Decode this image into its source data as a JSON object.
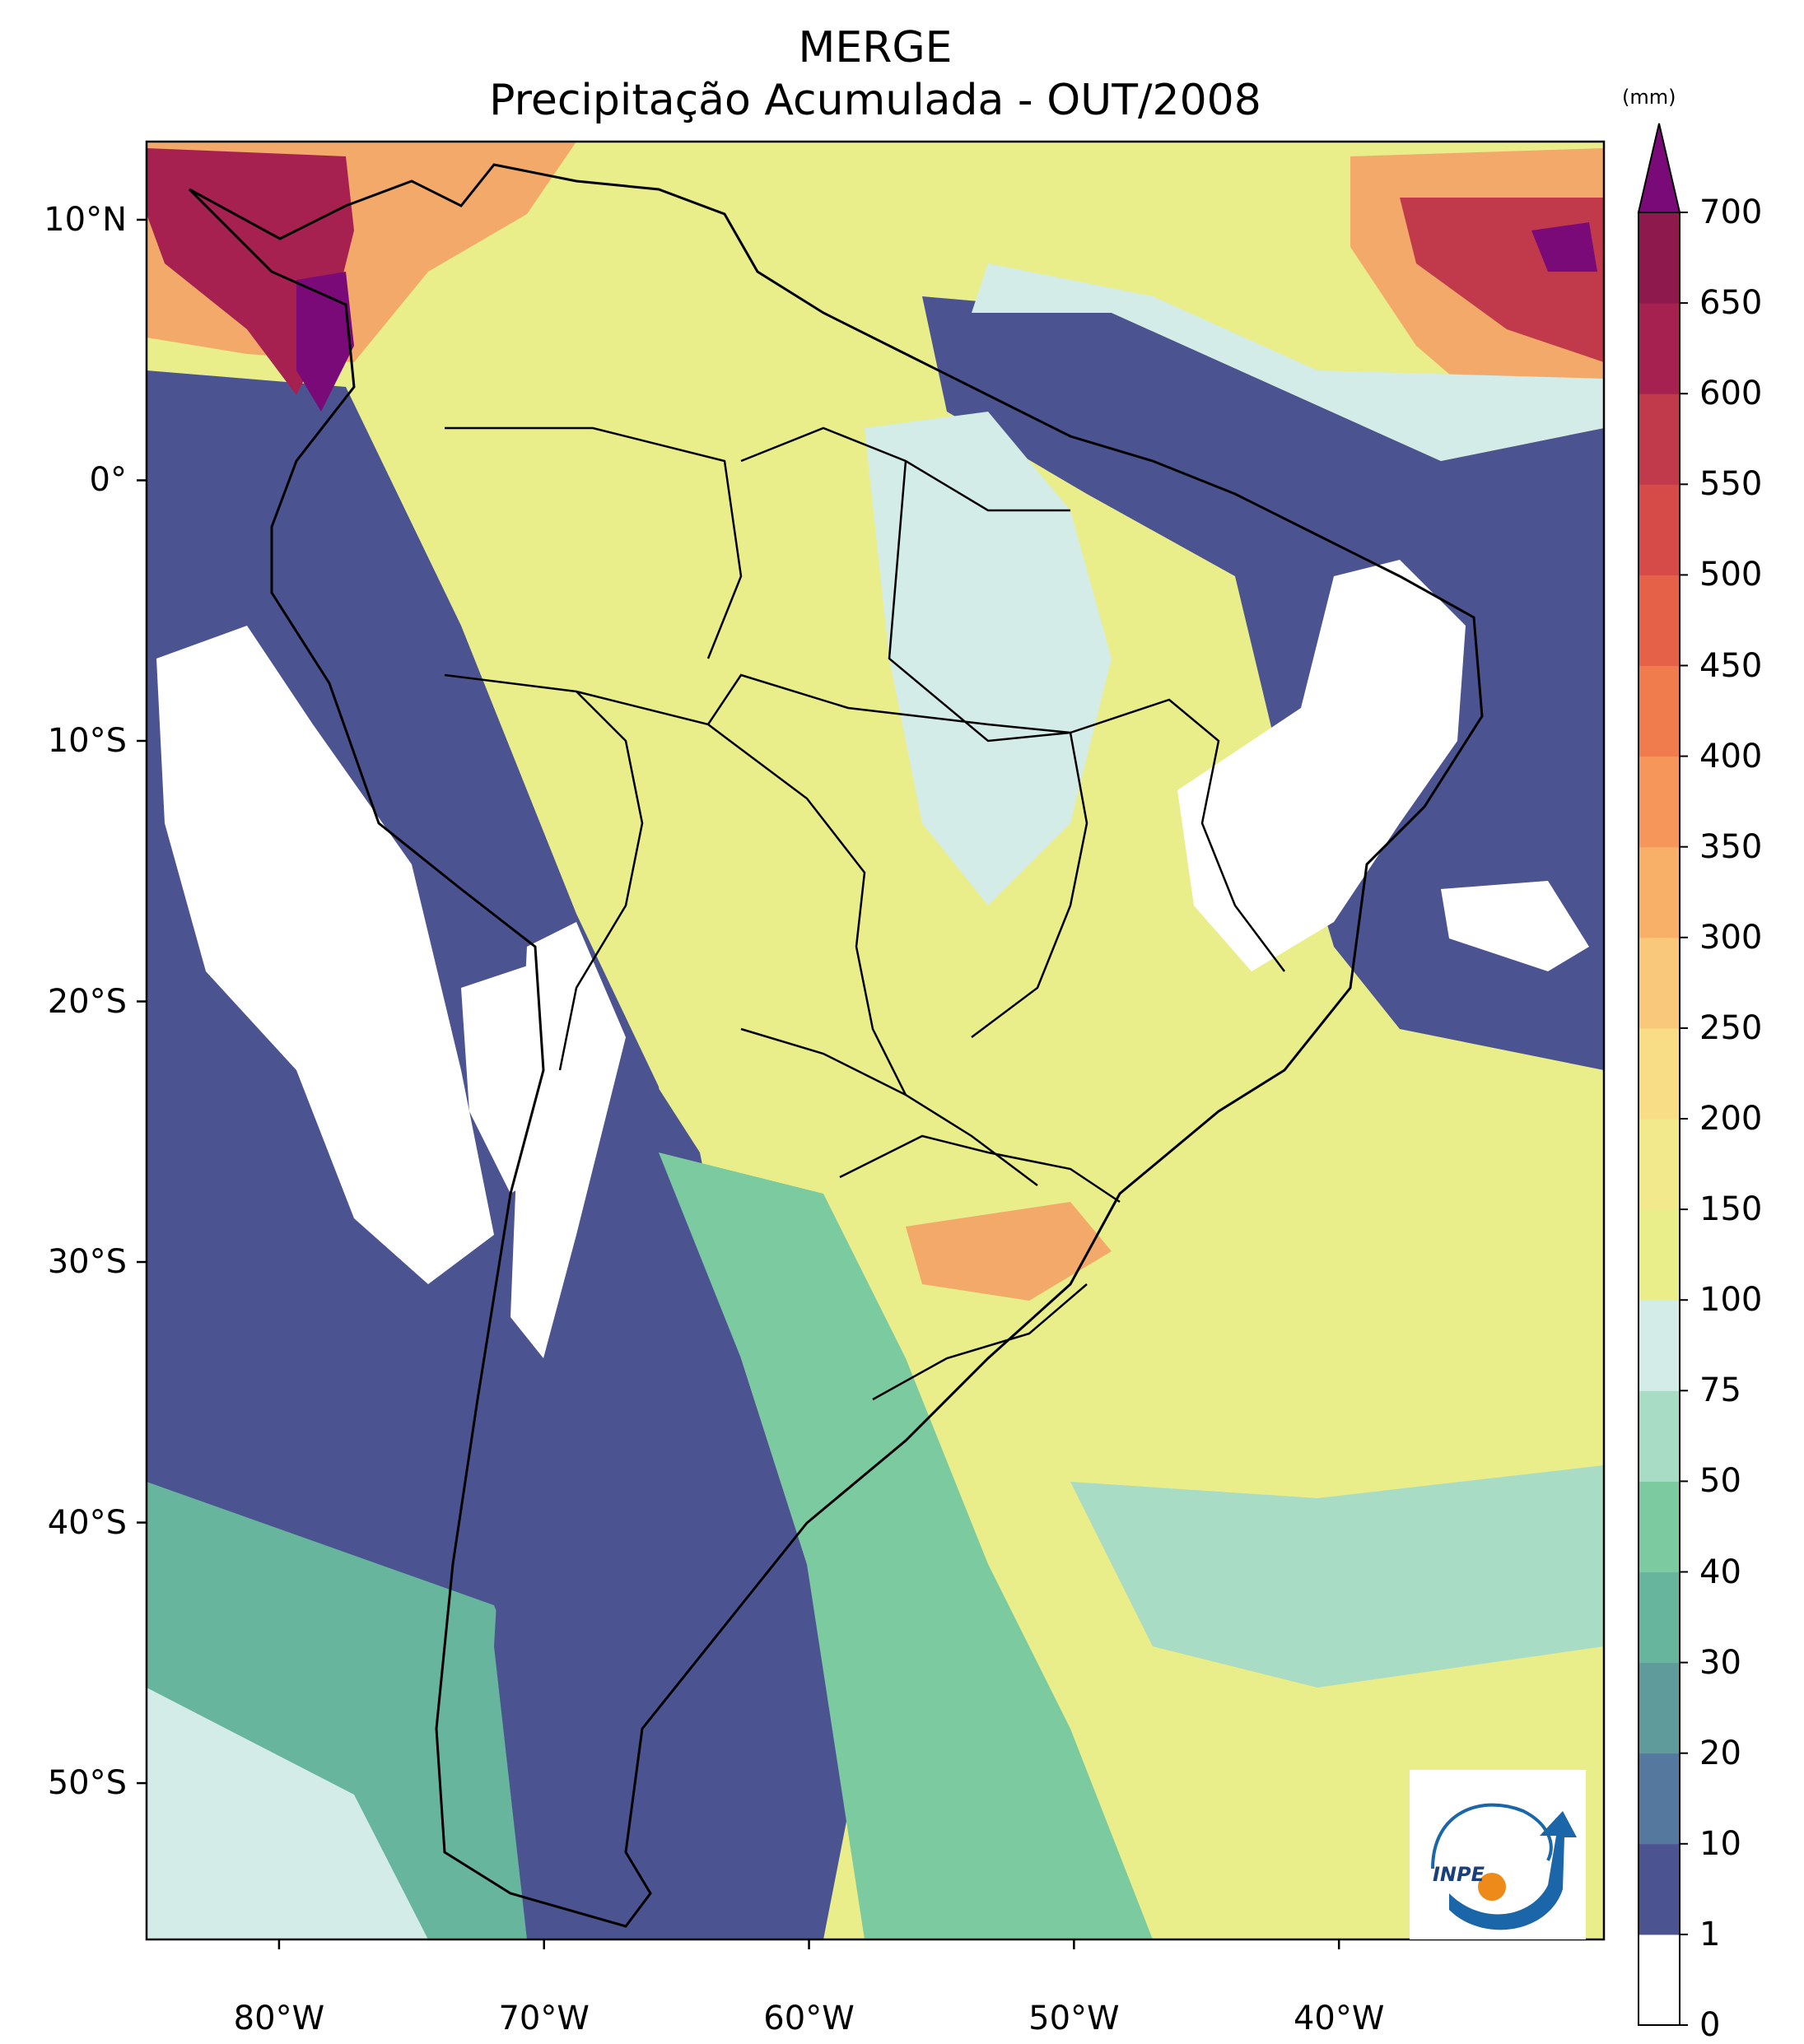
{
  "title": "MERGE",
  "subtitle": "Precipitação Acumulada - OUT/2008",
  "map": {
    "lat_ticks": [
      {
        "label": "10°N",
        "lat": 10
      },
      {
        "label": "0°",
        "lat": 0
      },
      {
        "label": "10°S",
        "lat": -10
      },
      {
        "label": "20°S",
        "lat": -20
      },
      {
        "label": "30°S",
        "lat": -30
      },
      {
        "label": "40°S",
        "lat": -40
      },
      {
        "label": "50°S",
        "lat": -50
      }
    ],
    "lon_ticks": [
      {
        "label": "80°W",
        "lon": -80
      },
      {
        "label": "70°W",
        "lon": -70
      },
      {
        "label": "60°W",
        "lon": -60
      },
      {
        "label": "50°W",
        "lon": -50
      },
      {
        "label": "40°W",
        "lon": -40
      }
    ],
    "extent": {
      "lon_min": -85,
      "lon_max": -30,
      "lat_min": -56,
      "lat_max": 13
    }
  },
  "colorbar": {
    "unit": "(mm)",
    "levels": [
      "0",
      "1",
      "10",
      "20",
      "30",
      "40",
      "50",
      "75",
      "100",
      "150",
      "200",
      "250",
      "300",
      "350",
      "400",
      "450",
      "500",
      "550",
      "600",
      "650",
      "700"
    ],
    "colors": [
      "#ffffff",
      "#4b5491",
      "#55789f",
      "#5f9b9b",
      "#67b59c",
      "#7ccaa0",
      "#a8dcc4",
      "#d3ece8",
      "#e9ee8a",
      "#f2e98c",
      "#f8dc86",
      "#f9c87a",
      "#f8b069",
      "#f6965b",
      "#f07b4d",
      "#e56248",
      "#d64b47",
      "#c13a4b",
      "#a6214f",
      "#8e1a4d"
    ],
    "extend_color": "#7a0a78"
  },
  "logo": {
    "text": "INPE"
  }
}
